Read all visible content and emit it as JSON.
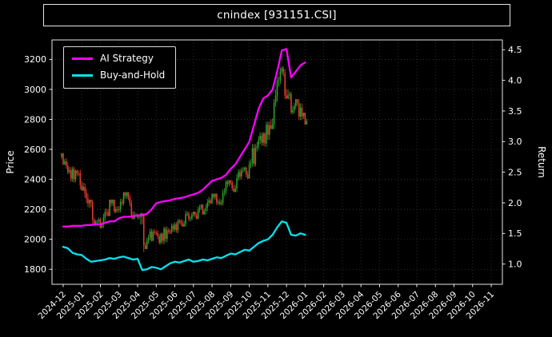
{
  "title": "cnindex [931151.CSI]",
  "chart_data": {
    "type": "candlestick+line",
    "title": "cnindex [931151.CSI]",
    "xlabel": "",
    "legend_position": "upper left",
    "grid": "dotted",
    "background": "#000000",
    "text_color": "#ffffff",
    "xlim": [
      -0.6,
      23.6
    ],
    "xticklabels": [
      "2024-12",
      "2025-01",
      "2025-02",
      "2025-03",
      "2025-04",
      "2025-05",
      "2025-06",
      "2025-07",
      "2025-08",
      "2025-09",
      "2025-10",
      "2025-11",
      "2025-12",
      "2026-01",
      "2026-02",
      "2026-03",
      "2026-04",
      "2026-05",
      "2026-06",
      "2026-07",
      "2026-08",
      "2026-09",
      "2026-10",
      "2026-11"
    ],
    "yleft": {
      "label": "Price",
      "ticks": [
        1800,
        2000,
        2200,
        2400,
        2600,
        2800,
        3000,
        3200
      ],
      "lim": [
        1700,
        3330
      ]
    },
    "yright": {
      "label": "Return",
      "ticks": [
        1.0,
        1.5,
        2.0,
        2.5,
        3.0,
        3.5,
        4.0,
        4.5
      ],
      "lim": [
        0.67,
        4.66
      ]
    },
    "colors": {
      "candle_up": "#2ca02c",
      "candle_down": "#e23a2e",
      "grid": "#3f3f3f",
      "frame": "#ffffff"
    },
    "x": [
      0,
      0.25,
      0.5,
      0.75,
      1,
      1.25,
      1.5,
      1.75,
      2,
      2.25,
      2.5,
      2.75,
      3,
      3.25,
      3.5,
      3.75,
      4,
      4.25,
      4.5,
      4.75,
      5,
      5.25,
      5.5,
      5.75,
      6,
      6.25,
      6.5,
      6.75,
      7,
      7.25,
      7.5,
      7.75,
      8,
      8.25,
      8.5,
      8.75,
      9,
      9.25,
      9.5,
      9.75,
      10,
      10.25,
      10.5,
      10.75,
      11,
      11.25,
      11.5,
      11.75,
      12,
      12.25,
      12.5,
      12.75,
      13
    ],
    "candles": {
      "open": [
        2550,
        2520,
        2460,
        2400,
        2440,
        2350,
        2240,
        2130,
        2120,
        2100,
        2180,
        2240,
        2200,
        2250,
        2290,
        2240,
        2160,
        2150,
        1960,
        2010,
        2050,
        2020,
        1990,
        2060,
        2090,
        2060,
        2110,
        2170,
        2140,
        2160,
        2210,
        2190,
        2260,
        2280,
        2250,
        2310,
        2370,
        2340,
        2410,
        2460,
        2430,
        2510,
        2610,
        2690,
        2640,
        2760,
        2910,
        3060,
        3110,
        2960,
        2860,
        2910,
        2820
      ],
      "high": [
        2575,
        2545,
        2485,
        2465,
        2465,
        2375,
        2265,
        2155,
        2145,
        2205,
        2265,
        2265,
        2275,
        2315,
        2315,
        2265,
        2185,
        2175,
        2035,
        2075,
        2075,
        2045,
        2085,
        2115,
        2115,
        2135,
        2195,
        2195,
        2185,
        2235,
        2235,
        2285,
        2305,
        2305,
        2335,
        2395,
        2395,
        2435,
        2485,
        2485,
        2535,
        2635,
        2715,
        2715,
        2785,
        2935,
        3085,
        3155,
        3135,
        2985,
        2935,
        2935,
        2845
      ],
      "low": [
        2495,
        2435,
        2375,
        2375,
        2325,
        2215,
        2105,
        2095,
        2075,
        2075,
        2155,
        2175,
        2175,
        2225,
        2215,
        2135,
        2125,
        1915,
        1935,
        1985,
        1995,
        1965,
        1965,
        2035,
        2035,
        2035,
        2085,
        2115,
        2115,
        2135,
        2165,
        2165,
        2235,
        2225,
        2225,
        2285,
        2315,
        2315,
        2385,
        2405,
        2405,
        2485,
        2585,
        2615,
        2615,
        2735,
        2885,
        3035,
        2935,
        2835,
        2835,
        2795,
        2765
      ],
      "close": [
        2520,
        2460,
        2400,
        2440,
        2350,
        2240,
        2130,
        2120,
        2100,
        2180,
        2240,
        2200,
        2250,
        2290,
        2240,
        2160,
        2150,
        1960,
        2010,
        2050,
        2020,
        1990,
        2060,
        2090,
        2060,
        2110,
        2170,
        2140,
        2160,
        2210,
        2190,
        2260,
        2280,
        2250,
        2310,
        2370,
        2340,
        2410,
        2460,
        2430,
        2510,
        2610,
        2690,
        2640,
        2760,
        2910,
        3060,
        3110,
        2960,
        2860,
        2910,
        2820,
        2790
      ]
    },
    "series": [
      {
        "name": "AI Strategy",
        "color": "#ff00ff",
        "values": [
          2085,
          2085,
          2090,
          2090,
          2090,
          2095,
          2095,
          2100,
          2100,
          2110,
          2120,
          2120,
          2140,
          2150,
          2150,
          2155,
          2160,
          2160,
          2170,
          2200,
          2240,
          2250,
          2255,
          2260,
          2270,
          2275,
          2280,
          2290,
          2300,
          2310,
          2330,
          2360,
          2390,
          2400,
          2410,
          2430,
          2470,
          2500,
          2550,
          2600,
          2650,
          2760,
          2870,
          2940,
          2960,
          3000,
          3120,
          3260,
          3270,
          3080,
          3120,
          3160,
          3180
        ]
      },
      {
        "name": "Buy-and-Hold",
        "color": "#00e5ee",
        "values": [
          1950,
          1940,
          1910,
          1900,
          1895,
          1870,
          1850,
          1855,
          1860,
          1865,
          1875,
          1870,
          1880,
          1885,
          1875,
          1865,
          1870,
          1795,
          1800,
          1815,
          1810,
          1800,
          1820,
          1840,
          1850,
          1845,
          1855,
          1865,
          1850,
          1855,
          1865,
          1860,
          1870,
          1880,
          1875,
          1890,
          1905,
          1900,
          1915,
          1930,
          1925,
          1950,
          1975,
          1990,
          2000,
          2030,
          2080,
          2120,
          2110,
          2030,
          2025,
          2040,
          2030
        ]
      }
    ]
  }
}
